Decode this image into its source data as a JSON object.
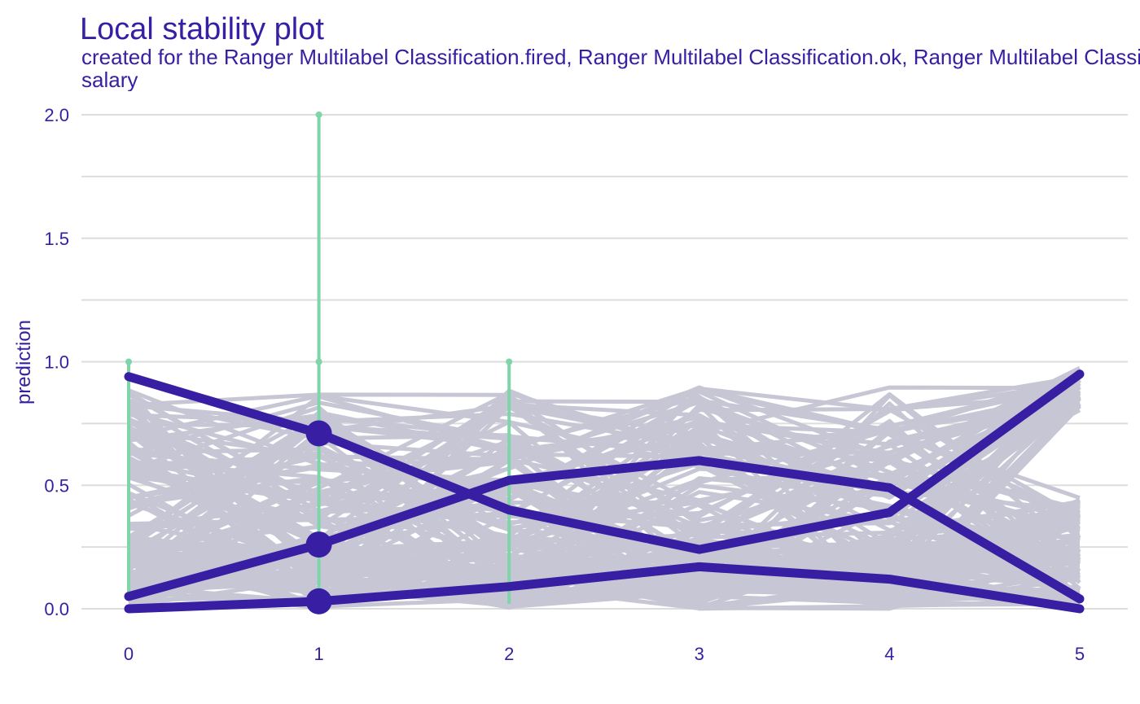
{
  "chart_data": {
    "type": "line",
    "title": "Local stability plot",
    "subtitle_lines": [
      "created for the Ranger Multilabel Classification.fired, Ranger Multilabel Classification.ok, Ranger Multilabel Classification.promoted models",
      "salary"
    ],
    "xlabel": "",
    "ylabel": "prediction",
    "x": [
      0,
      1,
      2,
      3,
      4,
      5
    ],
    "x_tick_labels": [
      "0",
      "1",
      "2",
      "3",
      "4",
      "5"
    ],
    "y_tick_labels": [
      "0.0",
      "0.5",
      "1.0",
      "1.5",
      "2.0"
    ],
    "ylim": [
      0,
      2
    ],
    "xlim": [
      0,
      5
    ],
    "grid": true,
    "legend": "none",
    "colors": {
      "main": "#371ea3",
      "neighbor": "#c7c6d4",
      "residual": "#7ed5a8",
      "grid": "#dddddd",
      "background": "#ffffff"
    },
    "series": [
      {
        "values": [
          0.94,
          0.71,
          0.4,
          0.24,
          0.39,
          0.95
        ]
      },
      {
        "values": [
          0.05,
          0.26,
          0.52,
          0.6,
          0.49,
          0.04
        ]
      },
      {
        "values": [
          0.0,
          0.03,
          0.09,
          0.17,
          0.12,
          0.0
        ]
      }
    ],
    "observation_points": [
      {
        "x": 1,
        "y": 0.71
      },
      {
        "x": 1,
        "y": 0.26
      },
      {
        "x": 1,
        "y": 0.03
      }
    ],
    "residual_segments": [
      {
        "x": 0,
        "y_from": 0.05,
        "y_to": 1.0
      },
      {
        "x": 1,
        "y_from": 0.03,
        "y_to": 2.0
      },
      {
        "x": 2,
        "y_from": 0.02,
        "y_to": 1.0
      }
    ],
    "residual_endpoints": [
      {
        "x": 0,
        "y": 1.0
      },
      {
        "x": 1,
        "y": 2.0
      },
      {
        "x": 1,
        "y": 1.0
      },
      {
        "x": 2,
        "y": 1.0
      }
    ],
    "neighbor_count": 150
  }
}
